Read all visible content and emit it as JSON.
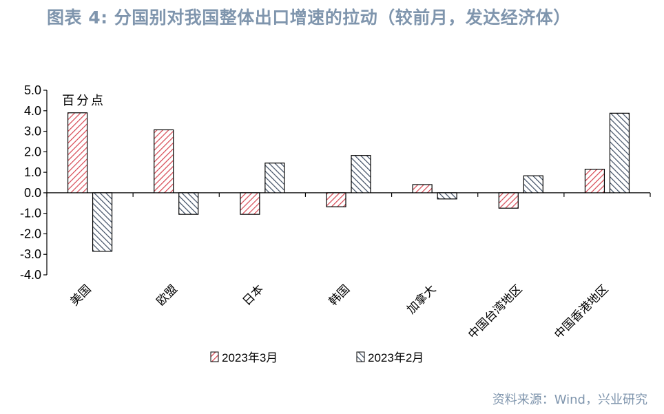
{
  "title": "图表 4:   分国别对我国整体出口增速的拉动（较前月，发达经济体）",
  "source": "资料来源：Wind，兴业研究",
  "colors": {
    "series1": "#d64550",
    "series2": "#3d4c62",
    "title": "#7f95ad"
  },
  "chart_data": {
    "type": "bar",
    "unit_label": "百分点",
    "categories": [
      "美国",
      "欧盟",
      "日本",
      "韩国",
      "加拿大",
      "中国台湾地区",
      "中国香港地区"
    ],
    "series": [
      {
        "name": "2023年3月",
        "values": [
          3.9,
          3.07,
          -1.05,
          -0.68,
          0.4,
          -0.75,
          1.15
        ]
      },
      {
        "name": "2023年2月",
        "values": [
          -2.85,
          -1.05,
          1.45,
          1.82,
          -0.3,
          0.83,
          3.88
        ]
      }
    ],
    "y_ticks": [
      "5.0",
      "4.0",
      "3.0",
      "2.0",
      "1.0",
      "0.0",
      "-1.0",
      "-2.0",
      "-3.0",
      "-4.0"
    ],
    "ylim": [
      -4.0,
      5.0
    ],
    "legend_position": "bottom",
    "grid": false
  }
}
